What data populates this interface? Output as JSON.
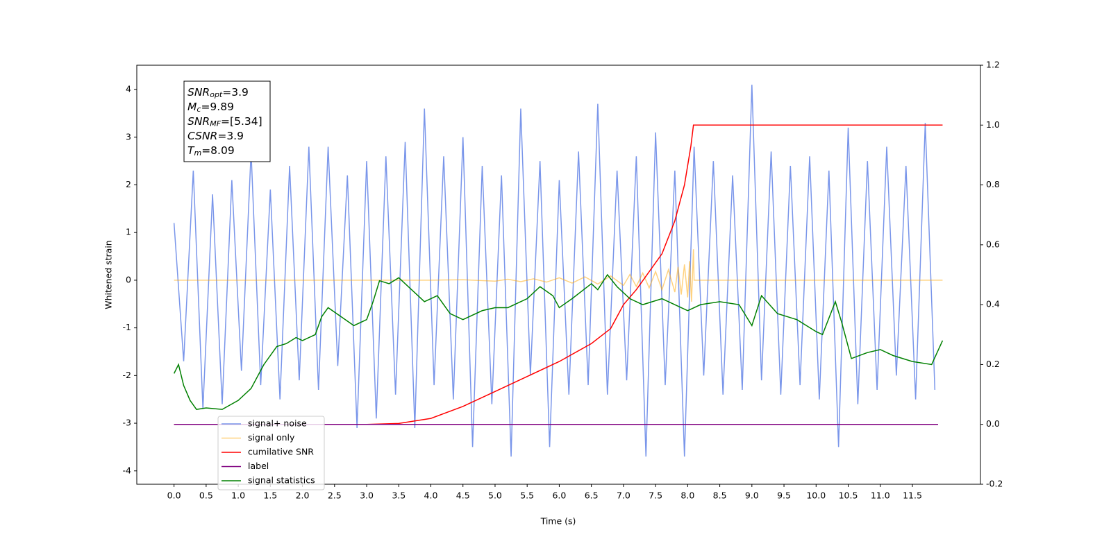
{
  "chart_data": {
    "type": "line",
    "xlabel": "Time (s)",
    "ylabel": "Whitened strain",
    "xlim": [
      -0.58,
      12.56
    ],
    "ylim": [
      -4.28,
      4.51
    ],
    "y2lim": [
      -0.2,
      1.2
    ],
    "xticks": [
      {
        "value": 0,
        "label": "0.0"
      },
      0.5,
      {
        "value": 1,
        "label": "1.0"
      },
      1.5,
      {
        "value": 2,
        "label": "2.0"
      },
      2.5,
      {
        "value": 3,
        "label": "3.0"
      },
      3.5,
      {
        "value": 4,
        "label": "4.0"
      },
      4.5,
      {
        "value": 5,
        "label": "5.0"
      },
      5.5,
      {
        "value": 6,
        "label": "6.0"
      },
      6.5,
      {
        "value": 7,
        "label": "7.0"
      },
      7.5,
      {
        "value": 8,
        "label": "8.0"
      },
      8.5,
      {
        "value": 9,
        "label": "9.0"
      },
      9.5,
      {
        "value": 10,
        "label": "10.0"
      },
      10.5,
      {
        "value": 11,
        "label": "11.0"
      },
      11.5
    ],
    "yticks": [
      -4,
      -3,
      -2,
      -1,
      0,
      1,
      2,
      3,
      4
    ],
    "y2ticks": [
      -0.2,
      {
        "value": 0,
        "label": "0.0"
      },
      0.2,
      0.4,
      0.6,
      0.8,
      {
        "value": 1,
        "label": "1.0"
      },
      1.2
    ],
    "legend": "lower left",
    "annotation": [
      {
        "symbol": "SNR",
        "subscript": "opt",
        "text": "=3.9"
      },
      {
        "symbol": "M",
        "subscript": "c",
        "text": "=9.89"
      },
      {
        "symbol": "SNR",
        "subscript": "MF",
        "text": "=[5.34]"
      },
      {
        "symbol": "CSNR",
        "subscript": "",
        "text": "=3.9"
      },
      {
        "symbol": "T",
        "subscript": "m",
        "text": "=8.09"
      }
    ],
    "series": [
      {
        "name": "signal+ noise",
        "color": "#4169e1",
        "x": [
          0,
          0.15,
          0.3,
          0.45,
          0.6,
          0.75,
          0.9,
          1.05,
          1.2,
          1.35,
          1.5,
          1.65,
          1.8,
          1.95,
          2.1,
          2.25,
          2.4,
          2.55,
          2.7,
          2.85,
          3,
          3.15,
          3.3,
          3.45,
          3.6,
          3.75,
          3.9,
          4.05,
          4.2,
          4.35,
          4.5,
          4.65,
          4.8,
          4.95,
          5.1,
          5.25,
          5.4,
          5.55,
          5.7,
          5.85,
          6,
          6.15,
          6.3,
          6.45,
          6.6,
          6.75,
          6.9,
          7.05,
          7.2,
          7.35,
          7.5,
          7.65,
          7.8,
          7.95,
          8.1,
          8.25,
          8.4,
          8.55,
          8.7,
          8.85,
          9,
          9.15,
          9.3,
          9.45,
          9.6,
          9.75,
          9.9,
          10.05,
          10.2,
          10.35,
          10.5,
          10.65,
          10.8,
          10.95,
          11.1,
          11.25,
          11.4,
          11.55,
          11.7,
          11.85
        ],
        "values": [
          1.2,
          -1.7,
          2.3,
          -2.7,
          1.8,
          -2.6,
          2.1,
          -1.9,
          2.7,
          -2.2,
          1.9,
          -2.5,
          2.4,
          -2.1,
          2.8,
          -2.3,
          2.8,
          -1.8,
          2.2,
          -3.1,
          2.5,
          -2.9,
          2.6,
          -2.4,
          2.9,
          -3.1,
          3.6,
          -2.2,
          2.6,
          -2.5,
          3.0,
          -3.5,
          2.4,
          -2.6,
          2.2,
          -3.7,
          3.6,
          -2.0,
          2.5,
          -3.5,
          2.1,
          -2.4,
          2.7,
          -2.2,
          3.7,
          -2.4,
          2.3,
          -2.1,
          2.6,
          -3.7,
          3.1,
          -2.2,
          2.3,
          -3.7,
          2.8,
          -2.0,
          2.5,
          -2.4,
          2.2,
          -2.3,
          4.1,
          -2.1,
          2.7,
          -2.4,
          2.4,
          -2.2,
          2.6,
          -2.5,
          2.3,
          -3.5,
          3.2,
          -2.6,
          2.5,
          -2.3,
          2.8,
          -2.0,
          2.4,
          -2.5,
          3.3,
          -2.3
        ]
      },
      {
        "name": "signal only",
        "color": "#ffa500",
        "x": [
          0,
          4.0,
          4.5,
          5.0,
          5.2,
          5.4,
          5.6,
          5.8,
          6.0,
          6.2,
          6.4,
          6.6,
          6.8,
          7.0,
          7.1,
          7.2,
          7.3,
          7.4,
          7.5,
          7.6,
          7.7,
          7.8,
          7.85,
          7.9,
          7.95,
          8.0,
          8.03,
          8.06,
          8.09,
          8.1,
          11.97
        ],
        "values": [
          0,
          0,
          0.01,
          -0.02,
          0.02,
          -0.03,
          0.03,
          -0.04,
          0.05,
          -0.06,
          0.07,
          -0.08,
          0.09,
          -0.11,
          0.12,
          -0.13,
          0.15,
          -0.16,
          0.18,
          -0.2,
          0.22,
          -0.25,
          0.28,
          -0.3,
          0.33,
          -0.36,
          0.4,
          -0.45,
          0.65,
          0,
          0
        ]
      },
      {
        "name": "cumilative SNR",
        "color": "#ff0000",
        "axis": "y2",
        "x": [
          0,
          3.0,
          3.5,
          4.0,
          4.5,
          5.0,
          5.5,
          6.0,
          6.5,
          6.8,
          7.0,
          7.2,
          7.4,
          7.6,
          7.8,
          7.95,
          8.05,
          8.09,
          11.97
        ],
        "values": [
          0,
          0,
          0.003,
          0.02,
          0.06,
          0.11,
          0.16,
          0.21,
          0.27,
          0.32,
          0.4,
          0.45,
          0.51,
          0.57,
          0.68,
          0.8,
          0.93,
          1.0,
          1.0
        ]
      },
      {
        "name": "label",
        "color": "#800080",
        "axis": "y2",
        "x": [
          0,
          11.9
        ],
        "values": [
          0,
          0
        ]
      },
      {
        "name": "signal statistics",
        "color": "#008000",
        "axis": "y2",
        "x": [
          0,
          0.07,
          0.15,
          0.25,
          0.35,
          0.5,
          0.75,
          1.0,
          1.2,
          1.4,
          1.6,
          1.75,
          1.9,
          2.0,
          2.2,
          2.3,
          2.4,
          2.6,
          2.8,
          3.0,
          3.1,
          3.2,
          3.35,
          3.5,
          3.7,
          3.9,
          4.1,
          4.3,
          4.5,
          4.8,
          5.0,
          5.2,
          5.4,
          5.5,
          5.7,
          5.9,
          6.0,
          6.2,
          6.5,
          6.6,
          6.75,
          6.9,
          7.1,
          7.3,
          7.6,
          7.8,
          8.0,
          8.2,
          8.5,
          8.8,
          9.0,
          9.15,
          9.4,
          9.7,
          10.0,
          10.1,
          10.3,
          10.4,
          10.55,
          10.8,
          11.0,
          11.2,
          11.5,
          11.8,
          11.97
        ],
        "values": [
          0.17,
          0.2,
          0.13,
          0.08,
          0.05,
          0.055,
          0.05,
          0.08,
          0.12,
          0.2,
          0.26,
          0.27,
          0.29,
          0.28,
          0.3,
          0.36,
          0.39,
          0.36,
          0.33,
          0.35,
          0.41,
          0.48,
          0.47,
          0.49,
          0.45,
          0.41,
          0.43,
          0.37,
          0.35,
          0.38,
          0.39,
          0.39,
          0.41,
          0.42,
          0.46,
          0.43,
          0.39,
          0.42,
          0.47,
          0.45,
          0.5,
          0.46,
          0.42,
          0.4,
          0.42,
          0.4,
          0.38,
          0.4,
          0.41,
          0.4,
          0.33,
          0.43,
          0.37,
          0.35,
          0.31,
          0.3,
          0.41,
          0.34,
          0.22,
          0.24,
          0.25,
          0.23,
          0.21,
          0.2,
          0.28
        ]
      }
    ]
  }
}
